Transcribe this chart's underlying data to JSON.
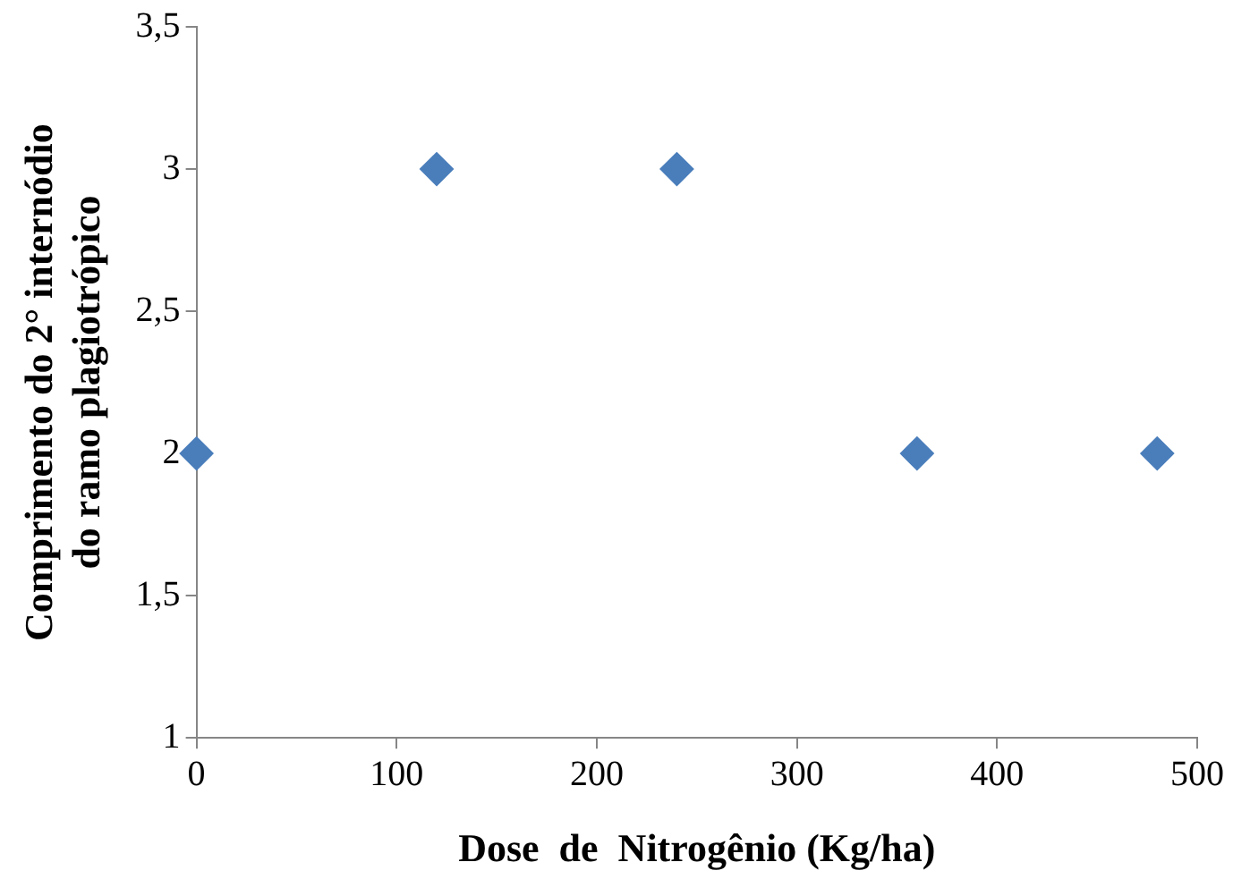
{
  "chart_data": {
    "type": "scatter",
    "xlabel": "Dose  de  Nitrogênio (Kg/ha)",
    "ylabel": "Comprimento do 2° internódio\ndo ramo plagiotrópico",
    "x": [
      0,
      120,
      240,
      360,
      480
    ],
    "series": [
      {
        "color": "#4a7ebb",
        "values": [
          2,
          3,
          3,
          2,
          2
        ]
      }
    ],
    "xlim": [
      0,
      500
    ],
    "xticks": [
      0,
      100,
      200,
      300,
      400,
      500
    ],
    "ylim": [
      1,
      3.5
    ],
    "yticks": [
      1,
      {
        "value": 1.5,
        "label": "1,5"
      },
      2,
      {
        "value": 2.5,
        "label": "2,5"
      },
      3,
      {
        "value": 3.5,
        "label": "3,5"
      }
    ],
    "grid": false,
    "legend": false,
    "marker": "diamond"
  }
}
